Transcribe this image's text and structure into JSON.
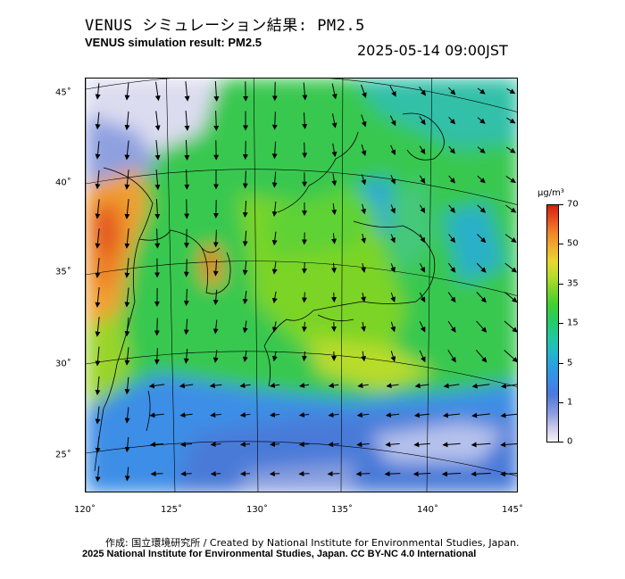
{
  "header": {
    "title_jp": "VENUS シミュレーション結果: PM2.5",
    "title_en": "VENUS simulation result: PM2.5",
    "timestamp": "2025-05-14 09:00JST"
  },
  "map": {
    "lon_range": [
      120,
      145
    ],
    "lat_range": [
      23,
      46
    ],
    "x_ticks": [
      "120˚",
      "125˚",
      "130˚",
      "135˚",
      "140˚",
      "145˚"
    ],
    "y_ticks": [
      "45˚",
      "40˚",
      "35˚",
      "30˚",
      "25˚"
    ],
    "field": "PM2.5 concentration with wind vectors"
  },
  "colorbar": {
    "unit": "µg/m³",
    "labels": [
      "70",
      "50",
      "35",
      "15",
      "5",
      "1",
      "0"
    ],
    "colors": {
      "low": "#f4f4f8",
      "blue": "#3a8ce8",
      "green": "#28cc60",
      "yellow": "#e6d830",
      "high": "#d02010"
    }
  },
  "footer": {
    "credit": "作成: 国立環境研究所 / Created by National Institute for Environmental Studies, Japan.",
    "license": "2025 National Institute for Environmental Studies, Japan. CC BY-NC 4.0 International"
  }
}
